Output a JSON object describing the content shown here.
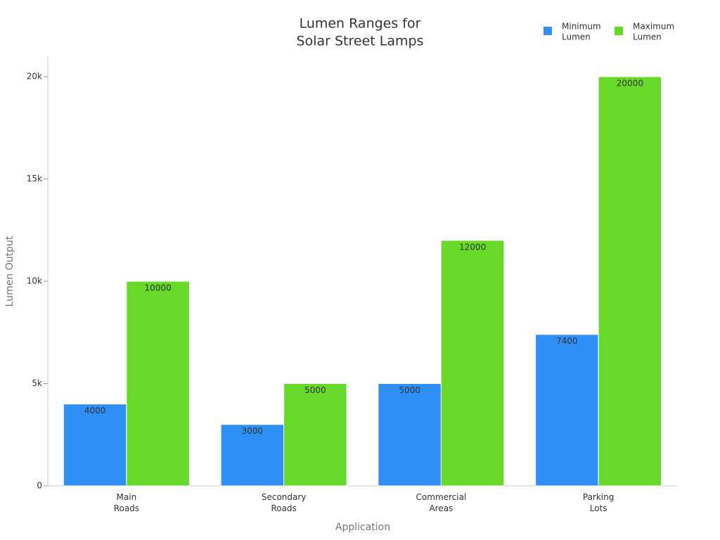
{
  "chart_data": {
    "type": "bar",
    "title": "Lumen Ranges for\nSolar Street Lamps",
    "x_label": "Application",
    "y_label": "Lumen Output",
    "categories": [
      "Main\nRoads",
      "Secondary\nRoads",
      "Commercial\nAreas",
      "Parking\nLots"
    ],
    "series": [
      {
        "name": "Minimum\nLumen",
        "color": "#2e8ff5",
        "values": [
          4000,
          3000,
          5000,
          7400
        ]
      },
      {
        "name": "Maximum\nLumen",
        "color": "#66d929",
        "values": [
          10000,
          5000,
          12000,
          20000
        ]
      }
    ],
    "ylim": [
      0,
      21000
    ],
    "yticks": [
      0,
      {
        "value": 5000,
        "label": "5k"
      },
      {
        "value": 10000,
        "label": "10k"
      },
      {
        "value": 15000,
        "label": "15k"
      },
      {
        "value": 20000,
        "label": "20k"
      }
    ],
    "grid": false,
    "legend": "top-right"
  }
}
